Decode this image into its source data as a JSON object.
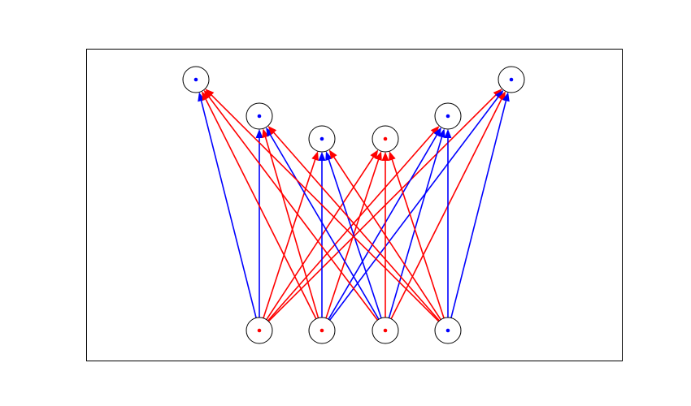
{
  "diagram": {
    "colors": {
      "blue": "#0000ff",
      "red": "#ff0000",
      "node_stroke": "#000000",
      "frame": "#000000",
      "background": "#ffffff"
    },
    "top_nodes": [
      {
        "id": "t1",
        "dot": "blue"
      },
      {
        "id": "t2",
        "dot": "blue"
      },
      {
        "id": "t3",
        "dot": "blue"
      },
      {
        "id": "t4",
        "dot": "red"
      },
      {
        "id": "t5",
        "dot": "blue"
      },
      {
        "id": "t6",
        "dot": "blue"
      }
    ],
    "bottom_nodes": [
      {
        "id": "b1",
        "dot": "red"
      },
      {
        "id": "b2",
        "dot": "red"
      },
      {
        "id": "b3",
        "dot": "red"
      },
      {
        "id": "b4",
        "dot": "blue"
      }
    ],
    "edges": [
      {
        "from": "b1",
        "to": "t1",
        "color": "blue"
      },
      {
        "from": "b1",
        "to": "t2",
        "color": "blue"
      },
      {
        "from": "b1",
        "to": "t3",
        "color": "red"
      },
      {
        "from": "b1",
        "to": "t4",
        "color": "red"
      },
      {
        "from": "b1",
        "to": "t5",
        "color": "red"
      },
      {
        "from": "b1",
        "to": "t6",
        "color": "red"
      },
      {
        "from": "b2",
        "to": "t1",
        "color": "red"
      },
      {
        "from": "b2",
        "to": "t2",
        "color": "red"
      },
      {
        "from": "b2",
        "to": "t3",
        "color": "blue"
      },
      {
        "from": "b2",
        "to": "t4",
        "color": "red"
      },
      {
        "from": "b2",
        "to": "t5",
        "color": "blue"
      },
      {
        "from": "b2",
        "to": "t6",
        "color": "blue"
      },
      {
        "from": "b3",
        "to": "t1",
        "color": "red"
      },
      {
        "from": "b3",
        "to": "t2",
        "color": "blue"
      },
      {
        "from": "b3",
        "to": "t3",
        "color": "blue"
      },
      {
        "from": "b3",
        "to": "t4",
        "color": "red"
      },
      {
        "from": "b3",
        "to": "t5",
        "color": "blue"
      },
      {
        "from": "b3",
        "to": "t6",
        "color": "red"
      },
      {
        "from": "b4",
        "to": "t1",
        "color": "red"
      },
      {
        "from": "b4",
        "to": "t2",
        "color": "red"
      },
      {
        "from": "b4",
        "to": "t3",
        "color": "red"
      },
      {
        "from": "b4",
        "to": "t4",
        "color": "red"
      },
      {
        "from": "b4",
        "to": "t5",
        "color": "blue"
      },
      {
        "from": "b4",
        "to": "t6",
        "color": "blue"
      }
    ]
  }
}
